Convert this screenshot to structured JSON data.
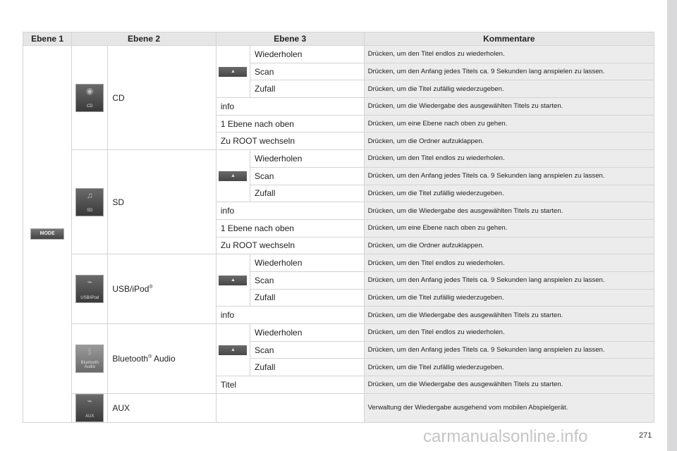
{
  "header": {
    "ebene1": "Ebene 1",
    "ebene2": "Ebene 2",
    "ebene3": "Ebene 3",
    "kommentare": "Kommentare"
  },
  "mode_label": "MODE",
  "up_arrow": "▲",
  "sources": [
    {
      "label": "CD",
      "sup": "",
      "icon": "cd-icon",
      "icon_text": "CD",
      "glyph": "◉",
      "items": [
        {
          "label": "Wiederholen",
          "comment": "Drücken, um den Titel endlos zu wiederholen.",
          "arrow": true
        },
        {
          "label": "Scan",
          "comment": "Drücken, um den Anfang jedes Titels ca. 9 Sekunden lang anspielen zu lassen.",
          "arrow": true
        },
        {
          "label": "Zufall",
          "comment": "Drücken, um die Titel zufällig wiederzugeben.",
          "arrow": true
        },
        {
          "label": "info",
          "comment": "Drücken, um die Wiedergabe des ausgewählten Titels zu starten."
        },
        {
          "label": "1 Ebene nach oben",
          "comment": "Drücken, um eine Ebene nach oben zu gehen."
        },
        {
          "label": "Zu ROOT wechseln",
          "comment": "Drücken, um die Ordner aufzuklappen."
        }
      ]
    },
    {
      "label": "SD",
      "sup": "",
      "icon": "sd-card-icon",
      "icon_text": "SD",
      "glyph": "♫",
      "items": [
        {
          "label": "Wiederholen",
          "comment": "Drücken, um den Titel endlos zu wiederholen.",
          "arrow": true
        },
        {
          "label": "Scan",
          "comment": "Drücken, um den Anfang jedes Titels ca. 9 Sekunden lang anspielen zu lassen.",
          "arrow": true
        },
        {
          "label": "Zufall",
          "comment": "Drücken, um die Titel zufällig wiederzugeben.",
          "arrow": true
        },
        {
          "label": "info",
          "comment": "Drücken, um die Wiedergabe des ausgewählten Titels zu starten."
        },
        {
          "label": "1 Ebene nach oben",
          "comment": "Drücken, um eine Ebene nach oben zu gehen."
        },
        {
          "label": "Zu ROOT wechseln",
          "comment": "Drücken, um die Ordner aufzuklappen."
        }
      ]
    },
    {
      "label": "USB/iPod",
      "sup": "®",
      "icon": "usb-cable-icon",
      "icon_text": "USB/iPod",
      "glyph": "⌁",
      "items": [
        {
          "label": "Wiederholen",
          "comment": "Drücken, um den Titel endlos zu wiederholen.",
          "arrow": true
        },
        {
          "label": "Scan",
          "comment": "Drücken, um den Anfang jedes Titels ca. 9 Sekunden lang anspielen zu lassen.",
          "arrow": true
        },
        {
          "label": "Zufall",
          "comment": "Drücken, um die Titel zufällig wiederzugeben.",
          "arrow": true
        },
        {
          "label": "info",
          "comment": "Drücken, um die Wiedergabe des ausgewählten Titels zu starten."
        }
      ]
    },
    {
      "label": "Bluetooth",
      "sup": "®",
      "label_suffix": " Audio",
      "icon": "bluetooth-icon",
      "icon_text": "Bluetooth Audio",
      "glyph": "ᛒ",
      "items": [
        {
          "label": "Wiederholen",
          "comment": "Drücken, um den Titel endlos zu wiederholen.",
          "arrow": true
        },
        {
          "label": "Scan",
          "comment": "Drücken, um den Anfang jedes Titels ca. 9 Sekunden lang anspielen zu lassen.",
          "arrow": true
        },
        {
          "label": "Zufall",
          "comment": "Drücken, um die Titel zufällig wiederzugeben.",
          "arrow": true
        },
        {
          "label": "Titel",
          "comment": "Drücken, um die Wiedergabe des ausgewählten Titels zu starten."
        }
      ]
    },
    {
      "label": "AUX",
      "sup": "",
      "icon": "aux-cable-icon",
      "icon_text": "AUX",
      "glyph": "⌁",
      "items": [
        {
          "label": "",
          "comment": "Verwaltung der Wiedergabe ausgehend vom mobilen Abspielgerät.",
          "aux": true
        }
      ]
    }
  ],
  "page_number": "271",
  "watermark": "carmanualsonline.info"
}
